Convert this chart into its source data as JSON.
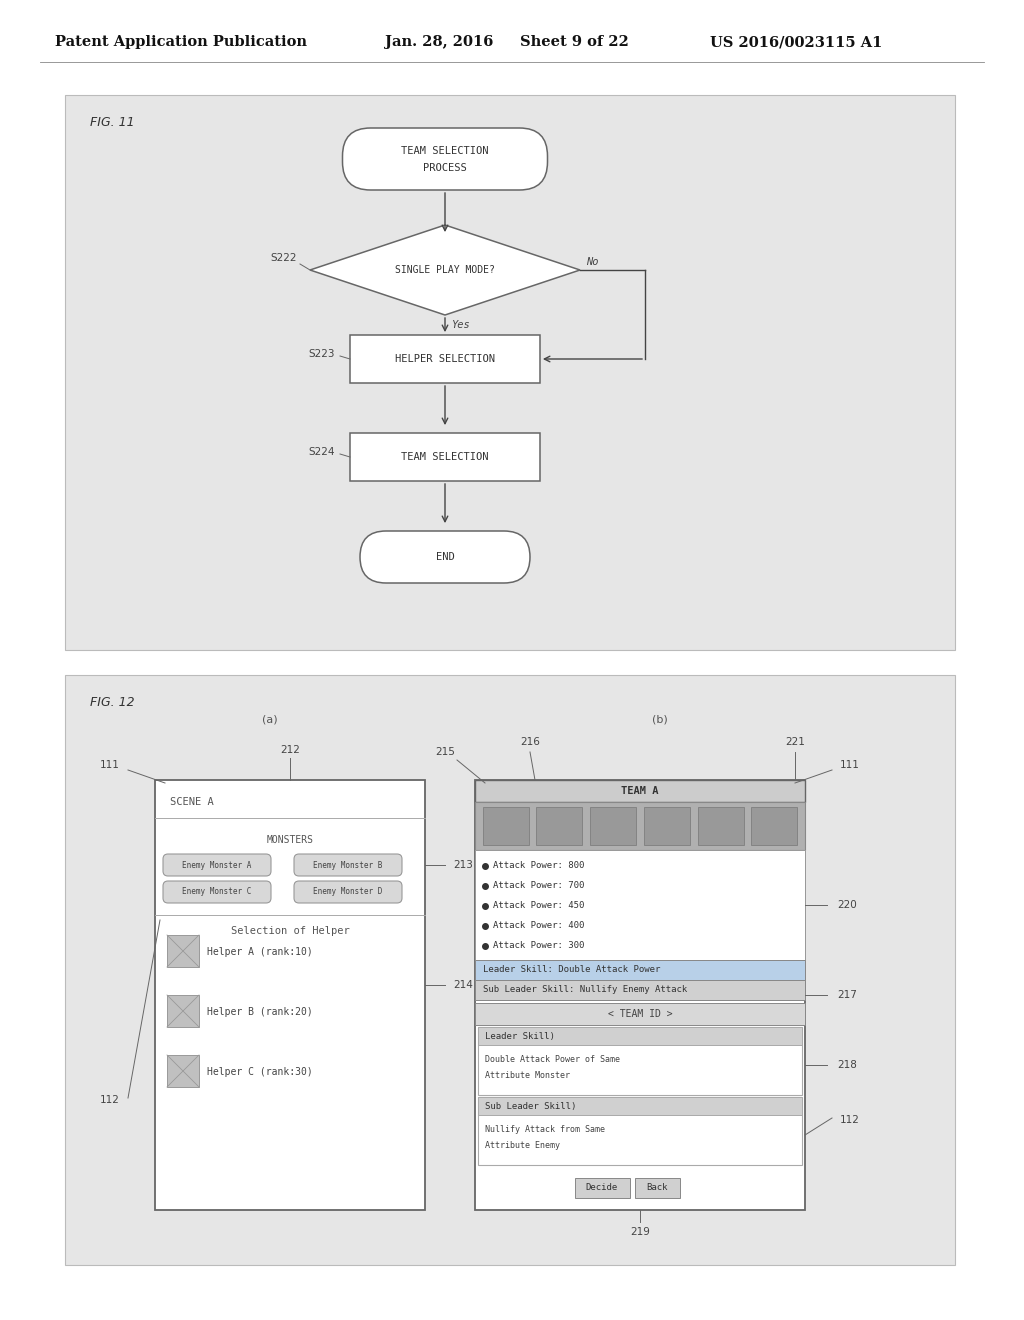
{
  "bg_color": "#ffffff",
  "panel_bg": "#e0e0e0",
  "panel_edge": "#bbbbbb",
  "box_face": "#ffffff",
  "box_edge": "#666666",
  "diamond_face": "#ffffff",
  "diamond_edge": "#666666",
  "arrow_color": "#444444",
  "text_color": "#333333",
  "header_left": "Patent Application Publication",
  "header_mid1": "Jan. 28, 2016",
  "header_mid2": "Sheet 9 of 22",
  "header_right": "US 2016/0023115 A1",
  "fig11_label": "FIG. 11",
  "fig12_label": "FIG. 12",
  "fig_a_label": "(a)",
  "fig_b_label": "(b)",
  "node_team_sel_proc": [
    "TEAM SELECTION",
    "PROCESS"
  ],
  "node_single_play": "SINGLE PLAY MODE?",
  "node_helper_sel": "HELPER SELECTION",
  "node_team_sel": "TEAM SELECTION",
  "node_end": "END",
  "label_s222": "S222",
  "label_s223": "S223",
  "label_s224": "S224",
  "label_yes": "Yes",
  "label_no": "No",
  "screen_a_title": "SCENE A",
  "monsters_label": "MONSTERS",
  "monster_boxes": [
    "Enemy Monster A",
    "Enemy Monster B",
    "Enemy Monster C",
    "Enemy Monster D"
  ],
  "helper_section": "Selection of Helper",
  "helpers": [
    "Helper A (rank:10)",
    "Helper B (rank:20)",
    "Helper C (rank:30)"
  ],
  "team_a_label": "TEAM A",
  "stats": [
    "Attack Power: 800",
    "Attack Power: 700",
    "Attack Power: 450",
    "Attack Power: 400",
    "Attack Power: 300"
  ],
  "leader_skill_bar": "Leader Skill: Double Attack Power",
  "sub_leader_bar": "Sub Leader Skill: Nullify Enemy Attack",
  "team_id_bar": "< TEAM ID >",
  "leader_skill_title": "Leader Skill)",
  "leader_skill_body": [
    "Double Attack Power of Same",
    "Attribute Monster"
  ],
  "sub_leader_title": "Sub Leader Skill)",
  "sub_leader_body": [
    "Nullify Attack from Same",
    "Attribute Enemy"
  ],
  "btn_decide": "Decide",
  "btn_back": "Back",
  "lbl_111a": "111",
  "lbl_112a": "112",
  "lbl_212": "212",
  "lbl_213": "213",
  "lbl_214": "214",
  "lbl_215": "215",
  "lbl_216": "216",
  "lbl_217": "217",
  "lbl_218": "218",
  "lbl_219": "219",
  "lbl_220": "220",
  "lbl_221": "221",
  "lbl_111b": "111",
  "lbl_112b": "112",
  "gray_light": "#cccccc",
  "gray_mid": "#aaaaaa",
  "gray_dark": "#888888",
  "icon_bg": "#999999",
  "leader_bar_color": "#b8d0e8",
  "sub_bar_color": "#d0d0d0"
}
